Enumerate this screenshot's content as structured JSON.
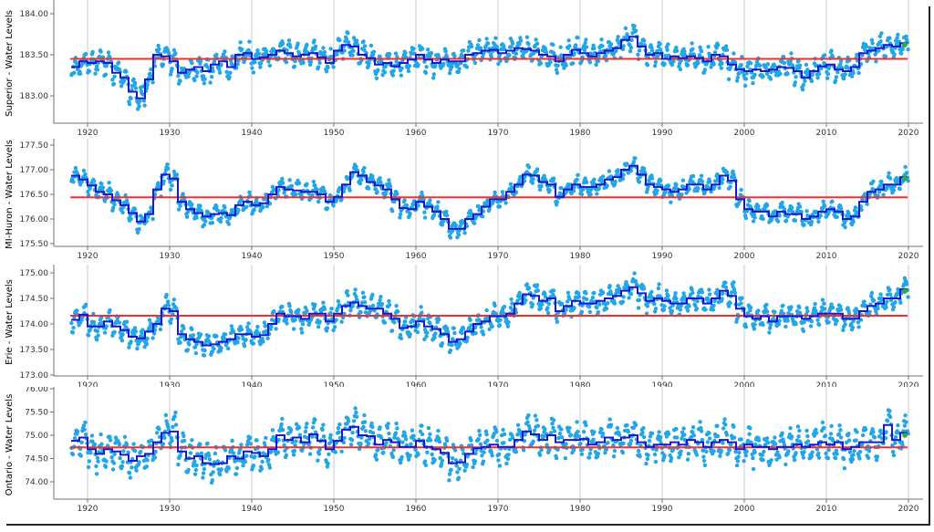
{
  "figure": {
    "background": "#ffffff",
    "frame_shadow_color": "#262626"
  },
  "colors": {
    "monthly_scatter": "#22A6E6",
    "annual_step_line": "#1818D0",
    "longterm_mean_line": "#FF2B2B",
    "latest_point": "#2FAE2F",
    "gridline": "#CBCBCB",
    "axis_line": "#707070",
    "tick_label": "#333333",
    "axis_title": "#000000"
  },
  "chart_data": {
    "type": "scatter",
    "x_axis": {
      "start_year": 1918,
      "end_year": 2020,
      "ticks": [
        1920,
        1930,
        1940,
        1950,
        1960,
        1970,
        1980,
        1990,
        2000,
        2010,
        2020
      ],
      "tick_labels": [
        "1920",
        "1930",
        "1940",
        "1950",
        "1960",
        "1970",
        "1980",
        "1990",
        "2000",
        "2010",
        "2020"
      ]
    },
    "panels": [
      {
        "key": "superior",
        "ylabel": "Superior - Water Levels",
        "ytick_values": [
          184.0,
          183.5,
          183.0
        ],
        "ytick_labels": [
          "184.00",
          "183.50",
          "183.00"
        ],
        "ylim": [
          182.667,
          184.167
        ],
        "longterm_mean": 183.45,
        "start_year": 1918,
        "annual_mean": [
          183.35,
          183.42,
          183.4,
          183.42,
          183.4,
          183.28,
          183.22,
          183.05,
          182.97,
          183.2,
          183.5,
          183.48,
          183.42,
          183.28,
          183.32,
          183.35,
          183.3,
          183.38,
          183.42,
          183.35,
          183.5,
          183.52,
          183.45,
          183.47,
          183.5,
          183.55,
          183.52,
          183.48,
          183.5,
          183.52,
          183.47,
          183.4,
          183.55,
          183.62,
          183.6,
          183.5,
          183.46,
          183.38,
          183.4,
          183.36,
          183.4,
          183.44,
          183.5,
          183.44,
          183.4,
          183.44,
          183.42,
          183.42,
          183.5,
          183.52,
          183.55,
          183.56,
          183.52,
          183.55,
          183.58,
          183.57,
          183.55,
          183.5,
          183.48,
          183.42,
          183.5,
          183.56,
          183.52,
          183.48,
          183.52,
          183.55,
          183.58,
          183.68,
          183.72,
          183.6,
          183.5,
          183.52,
          183.45,
          183.48,
          183.46,
          183.48,
          183.46,
          183.42,
          183.5,
          183.48,
          183.38,
          183.32,
          183.3,
          183.32,
          183.3,
          183.32,
          183.35,
          183.34,
          183.3,
          183.22,
          183.3,
          183.36,
          183.38,
          183.32,
          183.3,
          183.35,
          183.52,
          183.55,
          183.58,
          183.62,
          183.6,
          183.64
        ],
        "latest_point": {
          "year": 2019.55,
          "value": 183.62
        },
        "monthly_spread": {
          "seasonal_amplitude": 0.1,
          "noise": 0.05
        }
      },
      {
        "key": "mi_huron",
        "ylabel": "MI-Huron - Water Levels",
        "ytick_values": [
          177.5,
          177.0,
          176.5,
          176.0,
          175.5
        ],
        "ytick_labels": [
          "177.50",
          "177.00",
          "176.50",
          "176.00",
          "175.50"
        ],
        "ylim": [
          175.444,
          177.63
        ],
        "longterm_mean": 176.44,
        "start_year": 1918,
        "annual_mean": [
          176.88,
          176.8,
          176.68,
          176.55,
          176.5,
          176.38,
          176.28,
          176.12,
          175.95,
          176.1,
          176.6,
          176.9,
          176.82,
          176.35,
          176.2,
          176.12,
          176.05,
          176.1,
          176.12,
          176.08,
          176.28,
          176.35,
          176.28,
          176.32,
          176.5,
          176.65,
          176.6,
          176.58,
          176.55,
          176.55,
          176.5,
          176.35,
          176.45,
          176.7,
          176.95,
          176.88,
          176.75,
          176.68,
          176.6,
          176.4,
          176.22,
          176.2,
          176.35,
          176.25,
          176.15,
          176.0,
          175.8,
          175.8,
          176.0,
          176.1,
          176.25,
          176.4,
          176.4,
          176.55,
          176.7,
          176.9,
          176.88,
          176.75,
          176.7,
          176.45,
          176.6,
          176.7,
          176.65,
          176.65,
          176.7,
          176.8,
          176.85,
          177.0,
          177.08,
          176.9,
          176.7,
          176.65,
          176.6,
          176.55,
          176.6,
          176.7,
          176.7,
          176.6,
          176.7,
          176.88,
          176.78,
          176.4,
          176.2,
          176.15,
          176.15,
          176.05,
          176.15,
          176.1,
          176.1,
          176.0,
          176.05,
          176.15,
          176.2,
          176.15,
          176.0,
          176.05,
          176.35,
          176.55,
          176.6,
          176.7,
          176.7,
          176.85
        ],
        "latest_point": {
          "year": 2019.55,
          "value": 176.82
        },
        "monthly_spread": {
          "seasonal_amplitude": 0.12,
          "noise": 0.06
        }
      },
      {
        "key": "erie",
        "ylabel": "Erie - Water Levels",
        "ytick_values": [
          175.0,
          174.5,
          174.0,
          173.5,
          173.0
        ],
        "ytick_labels": [
          "175.00",
          "174.50",
          "174.00",
          "173.50",
          "173.00"
        ],
        "ylim": [
          172.982,
          175.161
        ],
        "longterm_mean": 174.16,
        "start_year": 1918,
        "annual_mean": [
          174.08,
          174.18,
          173.95,
          173.95,
          174.05,
          173.95,
          173.88,
          173.75,
          173.72,
          173.85,
          174.0,
          174.3,
          174.25,
          173.8,
          173.7,
          173.65,
          173.58,
          173.6,
          173.65,
          173.7,
          173.8,
          173.8,
          173.75,
          173.78,
          174.0,
          174.2,
          174.15,
          174.15,
          174.1,
          174.2,
          174.2,
          174.05,
          174.2,
          174.35,
          174.42,
          174.35,
          174.3,
          174.3,
          174.2,
          174.1,
          173.92,
          173.95,
          174.05,
          173.95,
          173.9,
          173.8,
          173.65,
          173.7,
          173.85,
          174.0,
          174.05,
          174.15,
          174.15,
          174.2,
          174.4,
          174.58,
          174.55,
          174.45,
          174.5,
          174.25,
          174.35,
          174.45,
          174.4,
          174.4,
          174.45,
          174.5,
          174.55,
          174.65,
          174.72,
          174.6,
          174.45,
          174.5,
          174.45,
          174.4,
          174.4,
          174.5,
          174.5,
          174.4,
          174.5,
          174.65,
          174.55,
          174.3,
          174.15,
          174.1,
          174.15,
          174.05,
          174.15,
          174.15,
          174.15,
          174.1,
          174.15,
          174.2,
          174.2,
          174.2,
          174.1,
          174.1,
          174.25,
          174.35,
          174.4,
          174.5,
          174.5,
          174.68
        ],
        "latest_point": {
          "year": 2019.55,
          "value": 174.64
        },
        "monthly_spread": {
          "seasonal_amplitude": 0.17,
          "noise": 0.07
        }
      },
      {
        "key": "ontario",
        "ylabel": "Ontario - Water Levels",
        "ytick_values": [
          76.0,
          75.5,
          75.0,
          74.5,
          74.0
        ],
        "ytick_labels": [
          "76.00",
          "75.50",
          "75.00",
          "74.50",
          "74.00"
        ],
        "ylim": [
          73.627,
          76.039
        ],
        "longterm_mean": 74.74,
        "start_year": 1918,
        "annual_mean": [
          74.88,
          74.95,
          74.7,
          74.6,
          74.7,
          74.65,
          74.58,
          74.45,
          74.55,
          74.6,
          74.85,
          75.05,
          75.08,
          74.65,
          74.5,
          74.55,
          74.4,
          74.38,
          74.4,
          74.55,
          74.5,
          74.65,
          74.62,
          74.55,
          74.7,
          75.0,
          74.9,
          74.95,
          74.85,
          75.02,
          74.88,
          74.7,
          74.88,
          75.12,
          75.18,
          75.0,
          74.98,
          74.8,
          74.9,
          74.85,
          74.75,
          74.75,
          74.88,
          74.75,
          74.7,
          74.62,
          74.4,
          74.42,
          74.6,
          74.72,
          74.75,
          74.8,
          74.75,
          74.75,
          74.9,
          75.08,
          75.02,
          74.9,
          75.0,
          74.85,
          74.9,
          74.9,
          74.92,
          74.8,
          74.85,
          74.95,
          74.9,
          74.95,
          75.0,
          74.85,
          74.75,
          74.8,
          74.8,
          74.85,
          74.8,
          74.9,
          74.85,
          74.75,
          74.85,
          74.9,
          74.85,
          74.7,
          74.8,
          74.75,
          74.75,
          74.7,
          74.75,
          74.75,
          74.8,
          74.75,
          74.8,
          74.85,
          74.8,
          74.85,
          74.7,
          74.75,
          74.85,
          74.85,
          74.85,
          75.22,
          74.9,
          75.05
        ],
        "latest_point": {
          "year": 2019.55,
          "value": 75.0
        },
        "monthly_spread": {
          "seasonal_amplitude": 0.28,
          "noise": 0.1
        }
      }
    ]
  }
}
